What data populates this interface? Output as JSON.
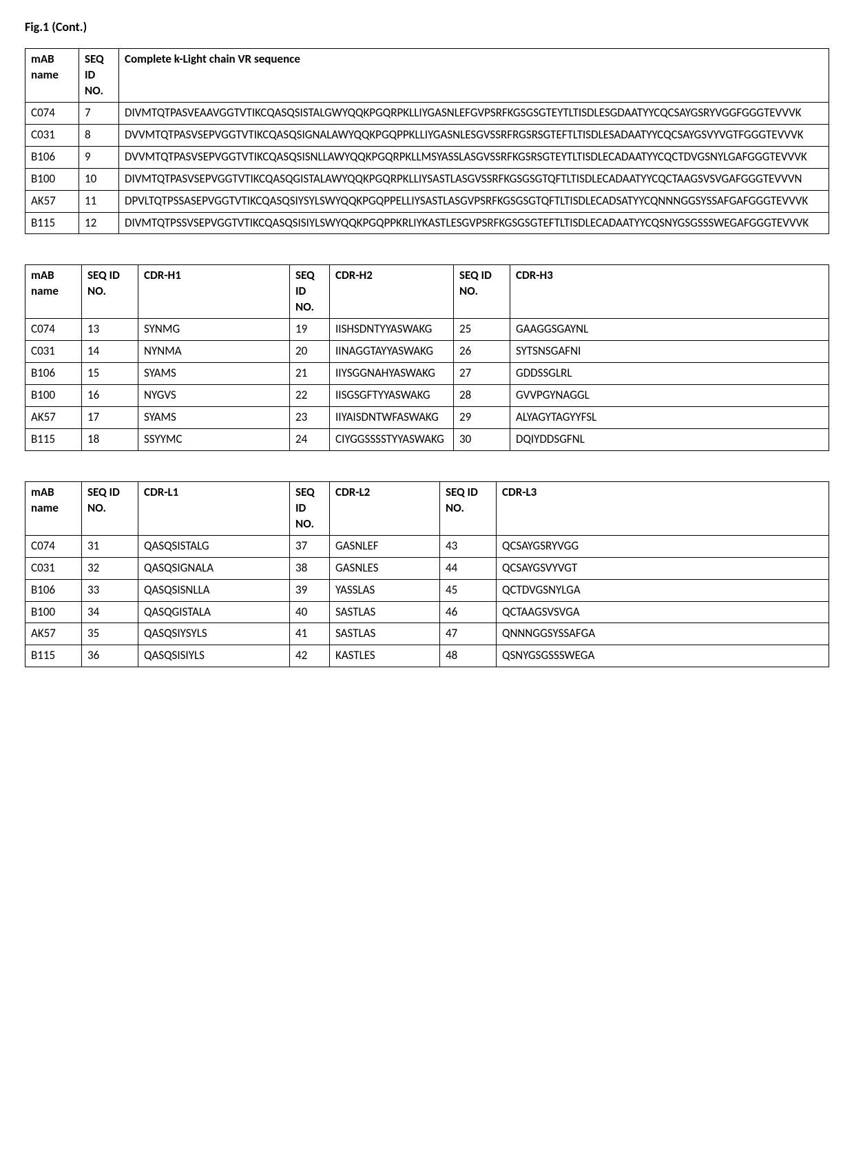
{
  "title": "Fig.1 (Cont.)",
  "table1": {
    "headers": [
      "mAB name",
      "SEQ ID NO.",
      "Complete k-Light chain VR sequence"
    ],
    "rows": [
      [
        "C074",
        "7",
        "DIVMTQTPASVEAAVGGTVTIKCQASQSISTALGWYQQKPGQRPKLLIYGASNLEFGVPSRFKGSGSGTEYTLTISDLESGDAATYYCQCSAYGSRYVGGFGGGTEVVVK"
      ],
      [
        "C031",
        "8",
        "DVVMTQTPASVSEPVGGTVTIKCQASQSIGNALAWYQQKPGQPPKLLIYGASNLESGVSSRFRGSRSGTEFTLTISDLESADAATYYCQCSAYGSVYVGTFGGGTEVVVK"
      ],
      [
        "B106",
        "9",
        "DVVMTQTPASVSEPVGGTVTIKCQASQSISNLLAWYQQKPGQRPKLLMSYASSLASGVSSRFKGSRSGTEYTLTISDLECADAATYYCQCTDVGSNYLGAFGGGTEVVVK"
      ],
      [
        "B100",
        "10",
        "DIVMTQTPASVSEPVGGTVTIKCQASQGISTALAWYQQKPGQRPKLLIYSASTLASGVSSRFKGSGSGTQFTLTISDLECADAATYYCQCTAAGSVSVGAFGGGTEVVVN"
      ],
      [
        "AK57",
        "11",
        "DPVLTQTPSSASEPVGGTVTIKCQASQSIYSYLSWYQQKPGQPPELLIYSASTLASGVPSRFKGSGSGTQFTLTISDLECADSATYYCQNNNGGSYSSAFGAFGGGTEVVVK"
      ],
      [
        "B115",
        "12",
        "DIVMTQTPSSVSEPVGGTVTIKCQASQSISIYLSWYQQKPGQPPKRLIYKASTLESGVPSRFKGSGSGTEFTLTISDLECADAATYYCQSNYGSGSSSWEGAFGGGTEVVVK"
      ]
    ]
  },
  "table2": {
    "headers": [
      "mAB name",
      "SEQ ID NO.",
      "CDR-H1",
      "SEQ ID NO.",
      "CDR-H2",
      "SEQ ID NO.",
      "CDR-H3"
    ],
    "rows": [
      [
        "C074",
        "13",
        "SYNMG",
        "19",
        "IISHSDNTYYASWAKG",
        "25",
        "GAAGGSGAYNL"
      ],
      [
        "C031",
        "14",
        "NYNMA",
        "20",
        "IINAGGTAYYASWAKG",
        "26",
        "SYTSNSGAFNI"
      ],
      [
        "B106",
        "15",
        "SYAMS",
        "21",
        "IIYSGGNAHYASWAKG",
        "27",
        "GDDSSGLRL"
      ],
      [
        "B100",
        "16",
        "NYGVS",
        "22",
        "IISGSGFTYYASWAKG",
        "28",
        "GVVPGYNAGGL"
      ],
      [
        "AK57",
        "17",
        "SYAMS",
        "23",
        "IIYAISDNTWFASWAKG",
        "29",
        "ALYAGYTAGYYFSL"
      ],
      [
        "B115",
        "18",
        "SSYYMC",
        "24",
        "CIYGGSSSSTYYASWAKG",
        "30",
        "DQIYDDSGFNL"
      ]
    ]
  },
  "table3": {
    "headers": [
      "mAB name",
      "SEQ ID NO.",
      "CDR-L1",
      "SEQ ID NO.",
      "CDR-L2",
      "SEQ ID NO.",
      "CDR-L3"
    ],
    "rows": [
      [
        "C074",
        "31",
        "QASQSISTALG",
        "37",
        "GASNLEF",
        "43",
        "QCSAYGSRYVGG"
      ],
      [
        "C031",
        "32",
        "QASQSIGNALA",
        "38",
        "GASNLES",
        "44",
        "QCSAYGSVYVGT"
      ],
      [
        "B106",
        "33",
        "QASQSISNLLA",
        "39",
        "YASSLAS",
        "45",
        "QCTDVGSNYLGA"
      ],
      [
        "B100",
        "34",
        "QASQGISTALA",
        "40",
        "SASTLAS",
        "46",
        "QCTAAGSVSVGA"
      ],
      [
        "AK57",
        "35",
        "QASQSIYSYLS",
        "41",
        "SASTLAS",
        "47",
        "QNNNGGSYSSAFGA"
      ],
      [
        "B115",
        "36",
        "QASQSISIYLS",
        "42",
        "KASTLES",
        "48",
        "QSNYGSGSSSWEGA"
      ]
    ]
  }
}
